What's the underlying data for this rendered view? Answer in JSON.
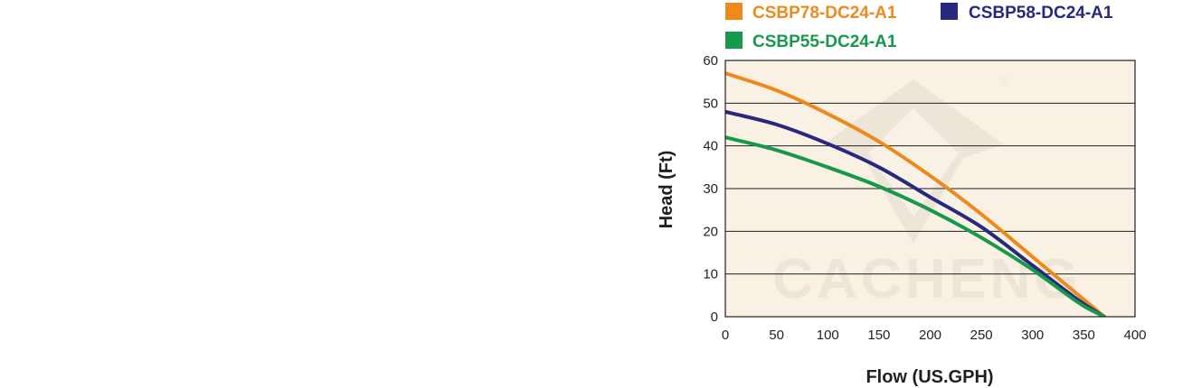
{
  "chart_data": {
    "type": "line",
    "title": "",
    "xlabel": "Flow (US.GPH)",
    "ylabel": "Head (Ft)",
    "xlim": [
      0,
      400
    ],
    "ylim": [
      0,
      60
    ],
    "x_ticks": [
      0,
      50,
      100,
      150,
      200,
      250,
      300,
      350,
      400
    ],
    "y_ticks": [
      0,
      10,
      20,
      30,
      40,
      50,
      60
    ],
    "grid": "horizontal",
    "background_color": "#f8f1e4",
    "legend_placement": "top",
    "series": [
      {
        "name": "CSBP78-DC24-A1",
        "color": "#ee8a1c",
        "x": [
          0,
          50,
          100,
          150,
          200,
          250,
          300,
          350,
          370
        ],
        "y": [
          57,
          53,
          47.5,
          41,
          33,
          24,
          14,
          4,
          0
        ]
      },
      {
        "name": "CSBP58-DC24-A1",
        "color": "#28297e",
        "x": [
          0,
          50,
          100,
          150,
          200,
          250,
          300,
          350,
          370
        ],
        "y": [
          48,
          45,
          40.5,
          35,
          28,
          21,
          12,
          3,
          0
        ]
      },
      {
        "name": "CSBP55-DC24-A1",
        "color": "#16994a",
        "x": [
          0,
          50,
          100,
          150,
          200,
          250,
          300,
          350,
          370
        ],
        "y": [
          42,
          39,
          35,
          30.5,
          25,
          18.5,
          11,
          2.5,
          0
        ]
      }
    ]
  },
  "watermark": {
    "text": "CACHENG",
    "mark": "®"
  }
}
